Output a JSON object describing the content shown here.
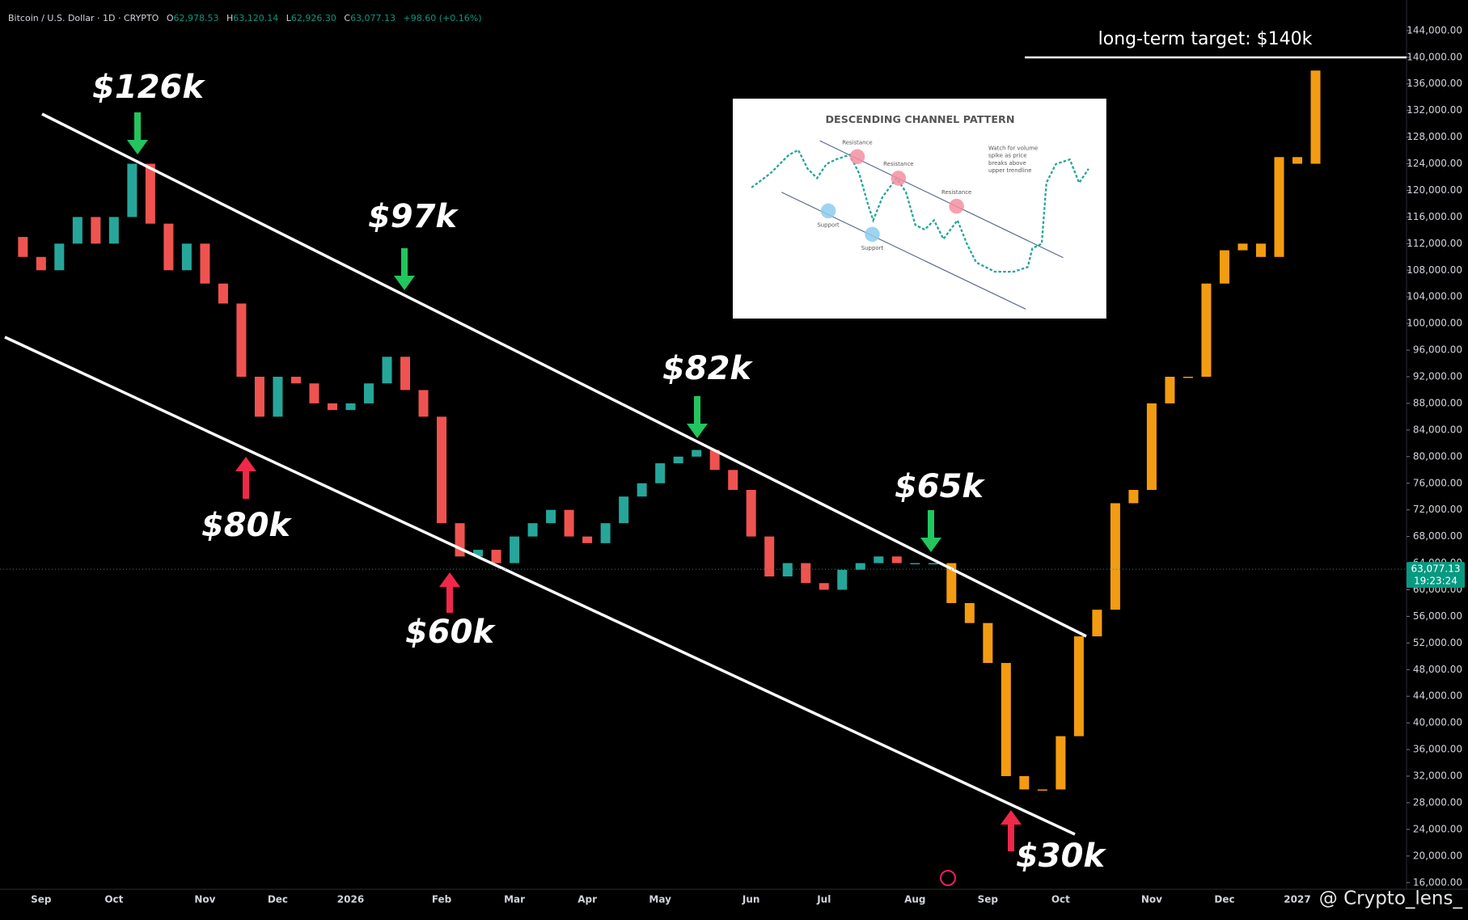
{
  "header": {
    "symbol": "Bitcoin / U.S. Dollar · 1D · CRYPTO",
    "ohlc": [
      {
        "key": "O",
        "text": "62,978.53"
      },
      {
        "key": "H",
        "text": "63,120.14"
      },
      {
        "key": "L",
        "text": "62,926.30"
      },
      {
        "key": "C",
        "text": "63,077.13"
      }
    ],
    "change": "+98.60 (+0.16%)"
  },
  "inset": {
    "title": "DESCENDING CHANNEL PATTERN",
    "resistance": [
      "Resistance",
      "Resistance",
      "Resistance"
    ],
    "support": [
      "Support",
      "Support"
    ],
    "note": [
      "Watch for volume",
      "spike as price",
      "breaks above",
      "upper trendline"
    ]
  },
  "watermark": "@ Crypto_lens_",
  "chart_data": {
    "type": "candlestick",
    "categories": [
      null,
      null,
      "Sep",
      null,
      null,
      null,
      "Oct",
      null,
      null,
      null,
      null,
      "Nov",
      null,
      null,
      null,
      "Dec",
      null,
      null,
      null,
      "2026",
      null,
      null,
      null,
      null,
      "Feb",
      null,
      null,
      null,
      "Mar",
      null,
      null,
      null,
      "Apr",
      null,
      null,
      null,
      "May",
      null,
      null,
      null,
      null,
      "Jun",
      null,
      null,
      null,
      "Jul",
      null,
      null,
      null,
      null,
      "Aug",
      null,
      null,
      null,
      "Sep",
      null,
      null,
      null,
      "Oct",
      null,
      null,
      null,
      null,
      "Nov",
      null,
      null,
      null,
      "Dec",
      null,
      null,
      null,
      "2027",
      null
    ],
    "series": [
      {
        "color_up": "#26a69a",
        "color_down": "#ef5350",
        "values": [
          113000,
          110000,
          108000,
          112000,
          116000,
          112000,
          116000,
          124000,
          115000,
          108000,
          112000,
          106000,
          103000,
          92000,
          86000,
          92000,
          91000,
          88000,
          87000,
          88000,
          91000,
          95000,
          90000,
          86000,
          70000,
          65000,
          66000,
          64000,
          68000,
          70000,
          72000,
          68000,
          67000,
          70000,
          74000,
          76000,
          79000,
          80000,
          81000,
          78000,
          75000,
          68000,
          62000,
          64000,
          61000,
          60000,
          63000,
          64000,
          65000,
          64000,
          64000,
          64000,
          null,
          null,
          null,
          null,
          null,
          null,
          null,
          null,
          null,
          null,
          null,
          null,
          null,
          null,
          null,
          null,
          null,
          null,
          null,
          null,
          null
        ]
      },
      {
        "color": "#f39c12",
        "values": [
          null,
          null,
          null,
          null,
          null,
          null,
          null,
          null,
          null,
          null,
          null,
          null,
          null,
          null,
          null,
          null,
          null,
          null,
          null,
          null,
          null,
          null,
          null,
          null,
          null,
          null,
          null,
          null,
          null,
          null,
          null,
          null,
          null,
          null,
          null,
          null,
          null,
          null,
          null,
          null,
          null,
          null,
          null,
          null,
          null,
          null,
          null,
          null,
          null,
          null,
          null,
          64000,
          58000,
          55000,
          49000,
          32000,
          30000,
          30000,
          38000,
          53000,
          57000,
          73000,
          75000,
          88000,
          92000,
          92000,
          106000,
          111000,
          112000,
          110000,
          125000,
          124000,
          138000
        ]
      }
    ],
    "ylim": [
      15000,
      148600
    ],
    "yticks": [
      {
        "value": 16000,
        "label": "16,000.00"
      },
      {
        "value": 20000,
        "label": "20,000.00"
      },
      {
        "value": 24000,
        "label": "24,000.00"
      },
      {
        "value": 28000,
        "label": "28,000.00"
      },
      {
        "value": 32000,
        "label": "32,000.00"
      },
      {
        "value": 36000,
        "label": "36,000.00"
      },
      {
        "value": 40000,
        "label": "40,000.00"
      },
      {
        "value": 44000,
        "label": "44,000.00"
      },
      {
        "value": 48000,
        "label": "48,000.00"
      },
      {
        "value": 52000,
        "label": "52,000.00"
      },
      {
        "value": 56000,
        "label": "56,000.00"
      },
      {
        "value": 60000,
        "label": "60,000.00"
      },
      {
        "value": 64000,
        "label": "64,000.00"
      },
      {
        "value": 68000,
        "label": "68,000.00"
      },
      {
        "value": 72000,
        "label": "72,000.00"
      },
      {
        "value": 76000,
        "label": "76,000.00"
      },
      {
        "value": 80000,
        "label": "80,000.00"
      },
      {
        "value": 84000,
        "label": "84,000.00"
      },
      {
        "value": 88000,
        "label": "88,000.00"
      },
      {
        "value": 92000,
        "label": "92,000.00"
      },
      {
        "value": 96000,
        "label": "96,000.00"
      },
      {
        "value": 100000,
        "label": "100,000.00"
      },
      {
        "value": 104000,
        "label": "104,000.00"
      },
      {
        "value": 108000,
        "label": "108,000.00"
      },
      {
        "value": 112000,
        "label": "112,000.00"
      },
      {
        "value": 116000,
        "label": "116,000.00"
      },
      {
        "value": 120000,
        "label": "120,000.00"
      },
      {
        "value": 124000,
        "label": "124,000.00"
      },
      {
        "value": 128000,
        "label": "128,000.00"
      },
      {
        "value": 132000,
        "label": "132,000.00"
      },
      {
        "value": 136000,
        "label": "136,000.00"
      },
      {
        "value": 140000,
        "label": "140,000.00"
      },
      {
        "value": 144000,
        "label": "144,000.00"
      }
    ],
    "grid": false,
    "last_price": {
      "value": 63077.13,
      "label": "63,077.13"
    },
    "countdown": "19:23:24",
    "annotations": [
      "$126k",
      "$97k",
      "$82k",
      "$65k",
      "$80k",
      "$60k",
      "$30k",
      "long-term target: $140k"
    ]
  }
}
